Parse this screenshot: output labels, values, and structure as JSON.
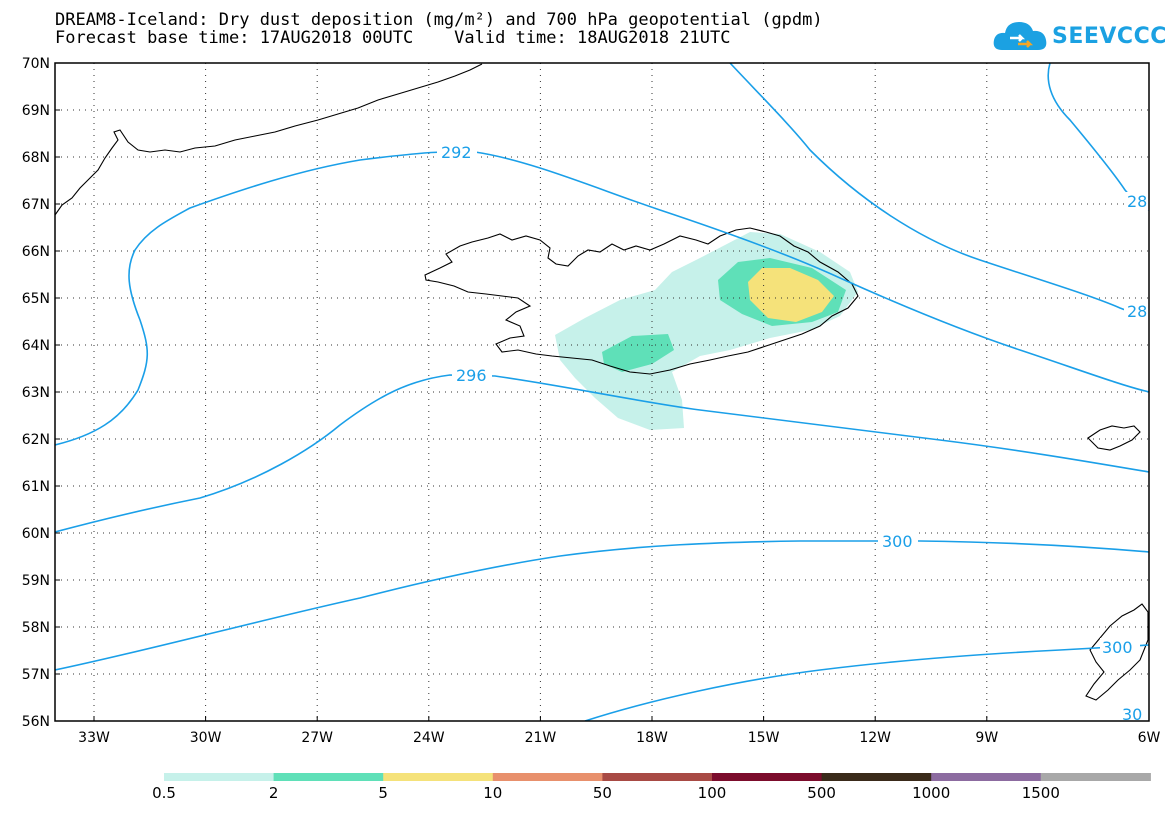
{
  "title_line1": "DREAM8-Iceland: Dry dust deposition (mg/m²) and 700 hPa geopotential (gpdm)",
  "title_line2": "Forecast base time: 17AUG2018 00UTC    Valid time: 18AUG2018 21UTC",
  "logo_text": "SEEVCCC",
  "lat_labels": [
    "70N",
    "69N",
    "68N",
    "67N",
    "66N",
    "65N",
    "64N",
    "63N",
    "62N",
    "61N",
    "60N",
    "59N",
    "58N",
    "57N",
    "56N"
  ],
  "lon_labels": [
    "33W",
    "30W",
    "27W",
    "24W",
    "21W",
    "18W",
    "15W",
    "12W",
    "9W",
    "6W"
  ],
  "contour_labels": [
    "292",
    "296",
    "300",
    "28",
    "28",
    "300",
    "30"
  ],
  "colorbar": {
    "labels": [
      "0.5",
      "2",
      "5",
      "10",
      "50",
      "100",
      "500",
      "1000",
      "1500"
    ],
    "colors": [
      "#c6f1ea",
      "#5fe0b8",
      "#f5e27a",
      "#e8906c",
      "#a84a44",
      "#7c0c2c",
      "#3a2a1a",
      "#8c6ba0",
      "#a8a8a8"
    ]
  },
  "contour_color": "#1a9fe8"
}
